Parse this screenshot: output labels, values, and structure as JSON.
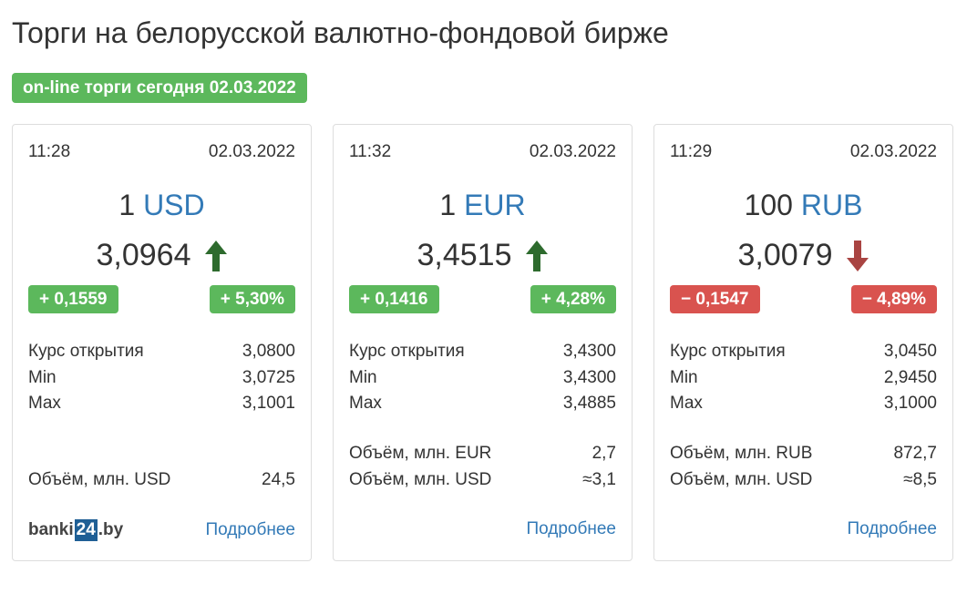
{
  "page": {
    "title": "Торги на белорусской валютно-фондовой бирже",
    "session_badge": "on-line торги сегодня 02.03.2022"
  },
  "colors": {
    "up": "#5cb85c",
    "down": "#d9534f",
    "arrow_up": "#2e6b2e",
    "arrow_down": "#a94442",
    "link": "#337ab7"
  },
  "labels": {
    "open": "Курс открытия",
    "min": "Min",
    "max": "Max",
    "more": "Подробнее"
  },
  "cards": [
    {
      "time": "11:28",
      "date": "02.03.2022",
      "amount": "1",
      "code": "USD",
      "rate": "3,0964",
      "direction": "up",
      "arrow_icon": "arrow-up-icon",
      "change_abs": "+ 0,1559",
      "change_pct": "+ 5,30%",
      "open": "3,0800",
      "min": "3,0725",
      "max": "3,1001",
      "volumes": [
        {
          "label": "Объём, млн. USD",
          "value": "24,5"
        }
      ]
    },
    {
      "time": "11:32",
      "date": "02.03.2022",
      "amount": "1",
      "code": "EUR",
      "rate": "3,4515",
      "direction": "up",
      "arrow_icon": "arrow-up-icon",
      "change_abs": "+ 0,1416",
      "change_pct": "+ 4,28%",
      "open": "3,4300",
      "min": "3,4300",
      "max": "3,4885",
      "volumes": [
        {
          "label": "Объём, млн. EUR",
          "value": "2,7"
        },
        {
          "label": "Объём, млн. USD",
          "value": "≈3,1"
        }
      ]
    },
    {
      "time": "11:29",
      "date": "02.03.2022",
      "amount": "100",
      "code": "RUB",
      "rate": "3,0079",
      "direction": "down",
      "arrow_icon": "arrow-down-icon",
      "change_abs": "− 0,1547",
      "change_pct": "− 4,89%",
      "open": "3,0450",
      "min": "2,9450",
      "max": "3,1000",
      "volumes": [
        {
          "label": "Объём, млн. RUB",
          "value": "872,7"
        },
        {
          "label": "Объём, млн. USD",
          "value": "≈8,5"
        }
      ]
    }
  ],
  "logo": {
    "prefix": "banki",
    "box": "24",
    "suffix": ".by"
  }
}
